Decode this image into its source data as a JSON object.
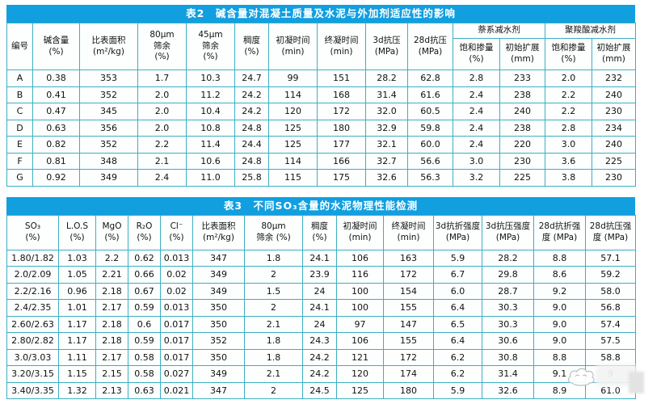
{
  "colors": {
    "title_bar": "#119fe0",
    "border": "#3caec3",
    "title_text": "#ffffff",
    "cell_bg": "#fdffff"
  },
  "table2": {
    "title": "表2　碱含量对混凝土质量及水泥与外加剂适应性的影响",
    "col_headers": [
      "编号",
      "碱含量\n(%)",
      "比表面积\n(m²/kg)",
      "80μm\n筛余\n(%)",
      "45μm\n筛余\n(%)",
      "稠度\n(%)",
      "初凝时间\n(min)",
      "终凝时间\n(min)",
      "3d抗压\n(MPa)",
      "28d抗压\n(MPa)"
    ],
    "group_headers": [
      "萘系减水剂",
      "聚羧酸减水剂"
    ],
    "sub_headers": [
      "饱和掺量\n(%)",
      "初始扩展\n(mm)",
      "饱和掺量\n(%)",
      "初始扩展\n(mm)"
    ],
    "rows": [
      [
        "A",
        "0.38",
        "353",
        "1.7",
        "10.3",
        "24.7",
        "99",
        "151",
        "28.2",
        "62.8",
        "2.8",
        "233",
        "2.0",
        "232"
      ],
      [
        "B",
        "0.41",
        "352",
        "2.0",
        "11.2",
        "24.2",
        "114",
        "168",
        "31.4",
        "61.6",
        "2.4",
        "238",
        "2.2",
        "240"
      ],
      [
        "C",
        "0.47",
        "345",
        "2.0",
        "10.4",
        "24.2",
        "120",
        "172",
        "32.0",
        "60.5",
        "2.4",
        "240",
        "2.2",
        "230"
      ],
      [
        "D",
        "0.63",
        "356",
        "2.0",
        "10.8",
        "24.8",
        "125",
        "180",
        "32.9",
        "59.8",
        "2.4",
        "238",
        "2.8",
        "234"
      ],
      [
        "E",
        "0.82",
        "352",
        "2.2",
        "11.4",
        "24.4",
        "125",
        "177",
        "32.1",
        "60.0",
        "2.4",
        "220",
        "3.0",
        "240"
      ],
      [
        "F",
        "0.81",
        "348",
        "2.1",
        "10.6",
        "24.8",
        "114",
        "166",
        "32.7",
        "56.6",
        "3.0",
        "230",
        "3.6",
        "225"
      ],
      [
        "G",
        "0.92",
        "349",
        "2.4",
        "11.0",
        "25.8",
        "115",
        "175",
        "32.6",
        "56.3",
        "3.2",
        "225",
        "3.8",
        "230"
      ]
    ]
  },
  "table3": {
    "title": "表3　不同SO₃含量的水泥物理性能检测",
    "col_headers": [
      "SO₃\n(%)",
      "L.O.S\n(%)",
      "MgO\n(%)",
      "R₂O\n(%)",
      "Cl⁻\n(%)",
      "比表面积\n(m²/kg)",
      "80μm\n筛余 (%)",
      "稠度\n(%)",
      "初凝时间\n(min)",
      "终凝时间\n(min)",
      "3d抗折强度\n(MPa)",
      "3d抗压强度\n(MPa)",
      "28d抗折强\n度 (MPa)",
      "28d抗压强\n度 (MPa)"
    ],
    "rows": [
      [
        "1.80/1.82",
        "1.03",
        "2.2",
        "0.62",
        "0.013",
        "347",
        "1.8",
        "24.1",
        "106",
        "163",
        "5.9",
        "28.2",
        "8.8",
        "57.1"
      ],
      [
        "2.0/2.09",
        "1.05",
        "2.21",
        "0.66",
        "0.02",
        "349",
        "2",
        "23.9",
        "116",
        "172",
        "6.7",
        "29.8",
        "8.6",
        "59.2"
      ],
      [
        "2.2/2.16",
        "0.96",
        "2.18",
        "0.67",
        "0.02",
        "349",
        "1.5",
        "24",
        "100",
        "154",
        "6.0",
        "28.7",
        "9.2",
        "58.0"
      ],
      [
        "2.4/2.35",
        "1.01",
        "2.17",
        "0.59",
        "0.013",
        "350",
        "2",
        "24.1",
        "100",
        "155",
        "6.4",
        "30.3",
        "9.0",
        "56.8"
      ],
      [
        "2.60/2.63",
        "1.17",
        "2.18",
        "0.6",
        "0.017",
        "350",
        "2.1",
        "24",
        "97",
        "147",
        "6.5",
        "30.3",
        "9.0",
        "57.4"
      ],
      [
        "2.80/2.82",
        "1.17",
        "2.18",
        "0.59",
        "0.017",
        "352",
        "1.8",
        "24.3",
        "106",
        "155",
        "6.4",
        "30.6",
        "9.0",
        "57.5"
      ],
      [
        "3.0/3.03",
        "1.11",
        "2.17",
        "0.58",
        "0.017",
        "350",
        "1.8",
        "24.2",
        "121",
        "172",
        "6.2",
        "30.8",
        "8.8",
        "58.8"
      ],
      [
        "3.20/3.15",
        "1.15",
        "2.15",
        "0.58",
        "0.027",
        "349",
        "2.1",
        "24.2",
        "120",
        "174",
        "6.2",
        "31.4",
        "9.1",
        "9"
      ],
      [
        "3.40/3.35",
        "1.32",
        "2.13",
        "0.63",
        "0.021",
        "347",
        "2",
        "24.5",
        "125",
        "180",
        "5.9",
        "32.6",
        "8.9",
        "61.0"
      ]
    ],
    "obscured_cell_visible_fragment": "9"
  }
}
